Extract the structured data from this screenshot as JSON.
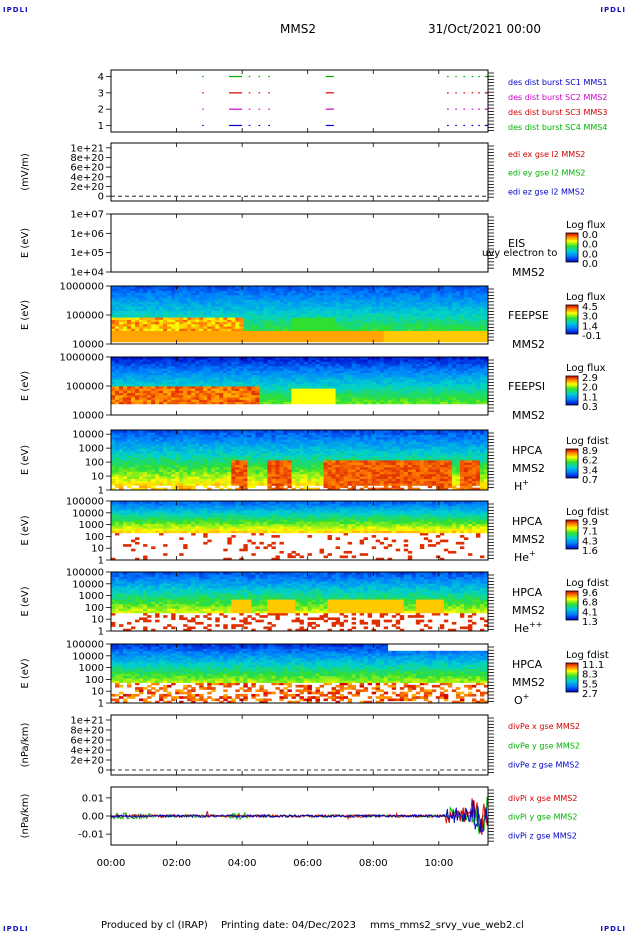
{
  "header": {
    "logo_left": "IPDLI",
    "logo_right": "IPDLI",
    "mission": "MMS2",
    "datetime": "31/Oct/2021 00:00"
  },
  "footer": {
    "logo_left": "IPDLI",
    "logo_right": "IPDLI",
    "produced_by": "Produced by cl (IRAP)",
    "printing_date": "Printing date: 04/Dec/2023",
    "filename": "mms_mms2_srvy_vue_web2.cl"
  },
  "time_axis": {
    "ticks": [
      "00:00",
      "02:00",
      "04:00",
      "06:00",
      "08:00",
      "10:00"
    ],
    "tick_hours": [
      0,
      2,
      4,
      6,
      8,
      10
    ],
    "range_hours": [
      0,
      11.5
    ]
  },
  "colors": {
    "red": "#d00000",
    "green": "#00b000",
    "blue": "#0000c8",
    "magenta": "#d000d0"
  },
  "chart_data": [
    {
      "id": "burst",
      "type": "line",
      "ylabel": "",
      "yticks": [
        "4",
        "3",
        "2",
        "1"
      ],
      "ytick_values": [
        4,
        3,
        2,
        1
      ],
      "ylim": [
        0.6,
        4.4
      ],
      "legend": [
        {
          "text": "des dist burst SC1 MMS1",
          "color": "#0000c8"
        },
        {
          "text": "des dist burst SC2 MMS2",
          "color": "#d000d0"
        },
        {
          "text": "des dist burst SC3 MMS3",
          "color": "#d00000"
        },
        {
          "text": "des dist burst SC4 MMS4",
          "color": "#00b000"
        }
      ],
      "series": [
        {
          "level": 4,
          "color": "#00b000",
          "intervals": [
            [
              2.78,
              2.8
            ],
            [
              3.6,
              4.0
            ],
            [
              4.2,
              4.25
            ],
            [
              4.5,
              4.55
            ],
            [
              4.8,
              4.85
            ],
            [
              6.55,
              6.8
            ],
            [
              10.25,
              10.3
            ],
            [
              10.5,
              10.55
            ],
            [
              10.75,
              10.8
            ],
            [
              11.0,
              11.05
            ],
            [
              11.2,
              11.25
            ],
            [
              11.4,
              11.5
            ]
          ]
        },
        {
          "level": 3,
          "color": "#d00000",
          "intervals": [
            [
              2.78,
              2.8
            ],
            [
              3.6,
              4.0
            ],
            [
              4.2,
              4.25
            ],
            [
              4.5,
              4.55
            ],
            [
              4.8,
              4.85
            ],
            [
              6.55,
              6.8
            ],
            [
              10.25,
              10.3
            ],
            [
              10.5,
              10.55
            ],
            [
              10.75,
              10.8
            ],
            [
              11.0,
              11.05
            ],
            [
              11.2,
              11.25
            ],
            [
              11.4,
              11.5
            ]
          ]
        },
        {
          "level": 2,
          "color": "#d000d0",
          "intervals": [
            [
              2.78,
              2.8
            ],
            [
              3.6,
              4.0
            ],
            [
              4.2,
              4.25
            ],
            [
              4.5,
              4.55
            ],
            [
              4.8,
              4.85
            ],
            [
              6.55,
              6.8
            ],
            [
              10.25,
              10.3
            ],
            [
              10.5,
              10.55
            ],
            [
              10.75,
              10.8
            ],
            [
              11.0,
              11.05
            ],
            [
              11.2,
              11.25
            ],
            [
              11.4,
              11.5
            ]
          ]
        },
        {
          "level": 1,
          "color": "#0000c8",
          "intervals": [
            [
              2.78,
              2.8
            ],
            [
              3.6,
              4.0
            ],
            [
              4.2,
              4.25
            ],
            [
              4.5,
              4.55
            ],
            [
              4.8,
              4.85
            ],
            [
              6.55,
              6.8
            ],
            [
              10.25,
              10.3
            ],
            [
              10.5,
              10.55
            ],
            [
              10.75,
              10.8
            ],
            [
              11.0,
              11.05
            ],
            [
              11.2,
              11.25
            ],
            [
              11.4,
              11.5
            ]
          ]
        }
      ]
    },
    {
      "id": "edi",
      "type": "line",
      "ylabel": "(mV/m)",
      "yticks": [
        "1e+21",
        "8e+20",
        "6e+20",
        "4e+20",
        "2e+20",
        "0"
      ],
      "ytick_values": [
        1e+21,
        8e+20,
        6e+20,
        4e+20,
        2e+20,
        0
      ],
      "ylim": [
        -1e+20,
        1.1e+21
      ],
      "zero_line": true,
      "legend": [
        {
          "text": "edi ex gse l2 MMS2",
          "color": "#d00000"
        },
        {
          "text": "edi ey gse l2 MMS2",
          "color": "#00b000"
        },
        {
          "text": "edi ez gse l2 MMS2",
          "color": "#0000c8"
        }
      ]
    },
    {
      "id": "eis",
      "type": "heatmap",
      "ylabel": "E (eV)",
      "yticks": [
        "1e+07",
        "1e+06",
        "1e+05",
        "1e+04"
      ],
      "ytick_values": [
        7,
        6,
        5,
        4
      ],
      "ylim_log10": [
        4,
        7
      ],
      "instrument": [
        "EIS"
      ],
      "mission_label": "MMS2",
      "overlay_text": "uvy electron to",
      "cbar_title": "Log flux",
      "cbar_labels": [
        "0.0",
        "0.0",
        "0.0",
        "0.0"
      ],
      "profile": "empty"
    },
    {
      "id": "feepse",
      "type": "heatmap",
      "ylabel": "E (eV)",
      "yticks": [
        "1000000",
        "100000",
        "10000"
      ],
      "ytick_values": [
        6,
        5,
        4
      ],
      "ylim_log10": [
        4,
        6
      ],
      "instrument": [
        "FEEPSE"
      ],
      "mission_label": "MMS2",
      "cbar_title": "Log flux",
      "cbar_labels": [
        "4.5",
        "3.0",
        "1.4",
        "-0.1"
      ],
      "profile": "feepse"
    },
    {
      "id": "feepsi",
      "type": "heatmap",
      "ylabel": "E (eV)",
      "yticks": [
        "1000000",
        "100000",
        "10000"
      ],
      "ytick_values": [
        6,
        5,
        4
      ],
      "ylim_log10": [
        4,
        6
      ],
      "instrument": [
        "FEEPSI"
      ],
      "mission_label": "MMS2",
      "cbar_title": "Log flux",
      "cbar_labels": [
        "2.9",
        "2.0",
        "1.1",
        "0.3"
      ],
      "profile": "feepsi"
    },
    {
      "id": "hpca_h",
      "type": "heatmap",
      "ylabel": "E (eV)",
      "yticks": [
        "10000",
        "1000",
        "100",
        "10",
        "1"
      ],
      "ytick_values": [
        4,
        3,
        2,
        1,
        0
      ],
      "ylim_log10": [
        0,
        4.3
      ],
      "instrument": [
        "HPCA",
        "MMS2",
        "H+"
      ],
      "cbar_title": "Log fdist",
      "cbar_labels": [
        "8.9",
        "6.2",
        "3.4",
        "0.7"
      ],
      "profile": "hplus"
    },
    {
      "id": "hpca_he",
      "type": "heatmap",
      "ylabel": "E (eV)",
      "yticks": [
        "100000",
        "10000",
        "1000",
        "100",
        "10",
        "1"
      ],
      "ytick_values": [
        5,
        4,
        3,
        2,
        1,
        0
      ],
      "ylim_log10": [
        0,
        5
      ],
      "instrument": [
        "HPCA",
        "MMS2",
        "He+"
      ],
      "cbar_title": "Log fdist",
      "cbar_labels": [
        "9.9",
        "7.1",
        "4.3",
        "1.6"
      ],
      "profile": "heplus"
    },
    {
      "id": "hpca_hepp",
      "type": "heatmap",
      "ylabel": "E (eV)",
      "yticks": [
        "100000",
        "10000",
        "1000",
        "100",
        "10",
        "1"
      ],
      "ytick_values": [
        5,
        4,
        3,
        2,
        1,
        0
      ],
      "ylim_log10": [
        0,
        5
      ],
      "instrument": [
        "HPCA",
        "MMS2",
        "He++"
      ],
      "cbar_title": "Log fdist",
      "cbar_labels": [
        "9.6",
        "6.8",
        "4.1",
        "1.3"
      ],
      "profile": "heplusplus"
    },
    {
      "id": "hpca_o",
      "type": "heatmap",
      "ylabel": "E (eV)",
      "yticks": [
        "100000",
        "10000",
        "1000",
        "100",
        "10",
        "1"
      ],
      "ytick_values": [
        5,
        4,
        3,
        2,
        1,
        0
      ],
      "ylim_log10": [
        0,
        5
      ],
      "instrument": [
        "HPCA",
        "MMS2",
        "O+"
      ],
      "cbar_title": "Log fdist",
      "cbar_labels": [
        "11.1",
        "8.3",
        "5.5",
        "2.7"
      ],
      "profile": "oplus"
    },
    {
      "id": "divpe",
      "type": "line",
      "ylabel": "(nPa/km)",
      "yticks": [
        "1e+21",
        "8e+20",
        "6e+20",
        "4e+20",
        "2e+20",
        "0"
      ],
      "ytick_values": [
        1e+21,
        8e+20,
        6e+20,
        4e+20,
        2e+20,
        0
      ],
      "ylim": [
        -1e+20,
        1.1e+21
      ],
      "zero_line": true,
      "legend": [
        {
          "text": "divPe x gse MMS2",
          "color": "#d00000"
        },
        {
          "text": "divPe y gse MMS2",
          "color": "#00b000"
        },
        {
          "text": "divPe z gse MMS2",
          "color": "#0000c8"
        }
      ]
    },
    {
      "id": "divpi",
      "type": "line",
      "ylabel": "(nPa/km)",
      "yticks": [
        "0.01",
        "0.00",
        "-0.01"
      ],
      "ytick_values": [
        0.01,
        0.0,
        -0.01
      ],
      "ylim": [
        -0.016,
        0.016
      ],
      "zero_line": true,
      "legend": [
        {
          "text": "divPi x gse MMS2",
          "color": "#d00000"
        },
        {
          "text": "divPi y gse MMS2",
          "color": "#00b000"
        },
        {
          "text": "divPi z gse MMS2",
          "color": "#0000c8"
        }
      ]
    }
  ]
}
